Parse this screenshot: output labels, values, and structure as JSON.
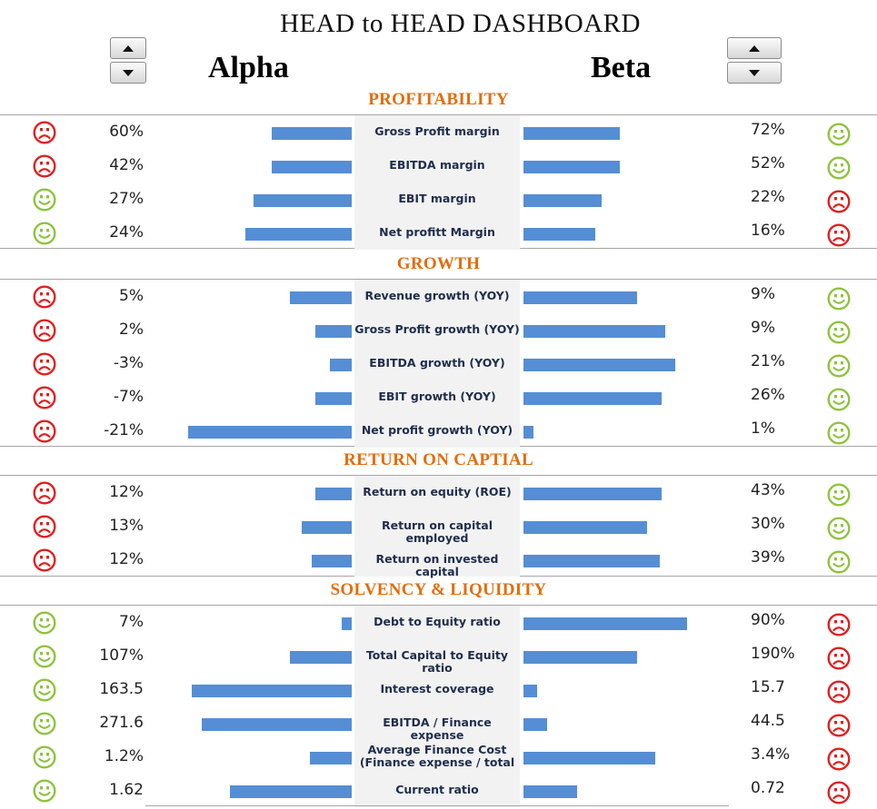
{
  "title": "HEAD to HEAD DASHBOARD",
  "team_a": "Alpha",
  "team_b": "Beta",
  "colors": {
    "section": "#e46c0a",
    "bar": "#558ed5",
    "happy": "#8fc33f",
    "sad": "#e02020"
  },
  "chart_data": {
    "type": "bar",
    "sections": [
      {
        "title": "PROFITABILITY",
        "rows": [
          {
            "metric": "Gross Profit margin",
            "a": "60%",
            "b": "72%",
            "a_face": "sad",
            "b_face": "happy",
            "a_bar": 0.4,
            "b_bar": 0.48
          },
          {
            "metric": "EBITDA margin",
            "a": "42%",
            "b": "52%",
            "a_face": "sad",
            "b_face": "happy",
            "a_bar": 0.4,
            "b_bar": 0.48
          },
          {
            "metric": "EBIT margin",
            "a": "27%",
            "b": "22%",
            "a_face": "happy",
            "b_face": "sad",
            "a_bar": 0.49,
            "b_bar": 0.39
          },
          {
            "metric": "Net profitt Margin",
            "a": "24%",
            "b": "16%",
            "a_face": "happy",
            "b_face": "sad",
            "a_bar": 0.53,
            "b_bar": 0.36
          }
        ]
      },
      {
        "title": "GROWTH",
        "rows": [
          {
            "metric": "Revenue growth (YOY)",
            "a": "5%",
            "b": "9%",
            "a_face": "sad",
            "b_face": "happy",
            "a_bar": 0.31,
            "b_bar": 0.57
          },
          {
            "metric": "Gross Profit growth (YOY)",
            "a": "2%",
            "b": "9%",
            "a_face": "sad",
            "b_face": "happy",
            "a_bar": 0.18,
            "b_bar": 0.71
          },
          {
            "metric": "EBITDA growth (YOY)",
            "a": "-3%",
            "b": "21%",
            "a_face": "sad",
            "b_face": "happy",
            "a_bar": 0.11,
            "b_bar": 0.76
          },
          {
            "metric": "EBIT growth (YOY)",
            "a": "-7%",
            "b": "26%",
            "a_face": "sad",
            "b_face": "happy",
            "a_bar": 0.18,
            "b_bar": 0.69
          },
          {
            "metric": "Net profit growth (YOY)",
            "a": "-21%",
            "b": "1%",
            "a_face": "sad",
            "b_face": "happy",
            "a_bar": 0.82,
            "b_bar": 0.05
          }
        ]
      },
      {
        "title": "RETURN ON CAPTIAL",
        "rows": [
          {
            "metric": "Return on equity (ROE)",
            "a": "12%",
            "b": "43%",
            "a_face": "sad",
            "b_face": "happy",
            "a_bar": 0.18,
            "b_bar": 0.69
          },
          {
            "metric": "Return on capital employed",
            "a": "13%",
            "b": "30%",
            "a_face": "sad",
            "b_face": "happy",
            "a_bar": 0.25,
            "b_bar": 0.62
          },
          {
            "metric": "Return on invested capital",
            "a": "12%",
            "b": "39%",
            "a_face": "sad",
            "b_face": "happy",
            "a_bar": 0.2,
            "b_bar": 0.68
          }
        ]
      },
      {
        "title": "SOLVENCY & LIQUIDITY",
        "rows": [
          {
            "metric": "Debt to Equity ratio",
            "a": "7%",
            "b": "90%",
            "a_face": "happy",
            "b_face": "sad",
            "a_bar": 0.05,
            "b_bar": 0.82
          },
          {
            "metric": "Total Capital to Equity ratio",
            "a": "107%",
            "b": "190%",
            "a_face": "happy",
            "b_face": "sad",
            "a_bar": 0.31,
            "b_bar": 0.57
          },
          {
            "metric": "Interest coverage",
            "a": "163.5",
            "b": "15.7",
            "a_face": "happy",
            "b_face": "sad",
            "a_bar": 0.8,
            "b_bar": 0.07
          },
          {
            "metric": "EBITDA / Finance expense",
            "a": "271.6",
            "b": "44.5",
            "a_face": "happy",
            "b_face": "sad",
            "a_bar": 0.75,
            "b_bar": 0.12
          },
          {
            "metric": "Average Finance Cost (Finance expense / total",
            "a": "1.2%",
            "b": "3.4%",
            "a_face": "happy",
            "b_face": "sad",
            "a_bar": 0.21,
            "b_bar": 0.66
          },
          {
            "metric": "Current ratio",
            "a": "1.62",
            "b": "0.72",
            "a_face": "happy",
            "b_face": "sad",
            "a_bar": 0.61,
            "b_bar": 0.27
          }
        ]
      }
    ]
  }
}
